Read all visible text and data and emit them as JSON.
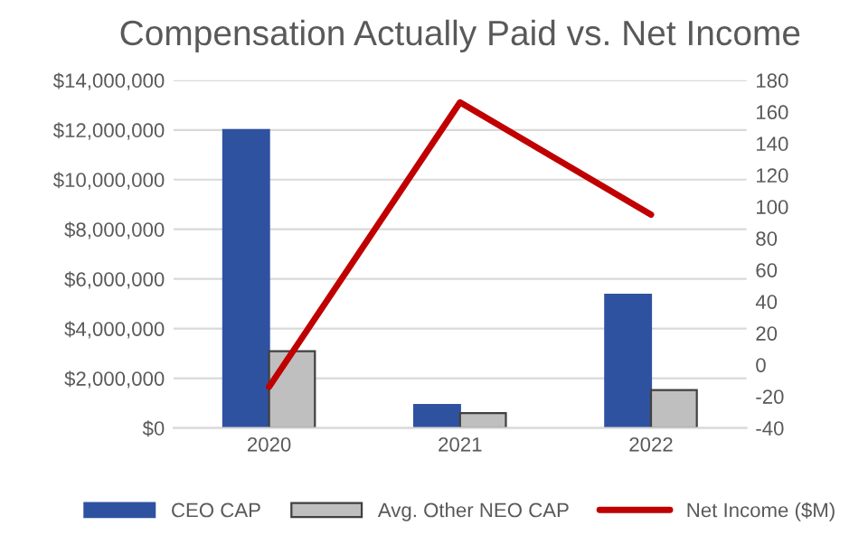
{
  "chart_data": {
    "type": "bar",
    "title": "Compensation Actually Paid vs. Net Income",
    "categories": [
      "2020",
      "2021",
      "2022"
    ],
    "series": [
      {
        "name": "CEO CAP",
        "color": "#2f52a0",
        "values": [
          12000000,
          930000,
          5370000
        ]
      },
      {
        "name": "Avg. Other NEO CAP",
        "color": "#bfbfbf",
        "values": [
          3090000,
          600000,
          1530000
        ]
      },
      {
        "name": "Net Income ($M)",
        "color": "#c00000",
        "type": "line",
        "axis": "y2",
        "values": [
          -14,
          166,
          95
        ]
      }
    ],
    "ylim": [
      0,
      14000000
    ],
    "yticks": [
      {
        "value": 0,
        "label": "$0"
      },
      {
        "value": 2000000,
        "label": "$2,000,000"
      },
      {
        "value": 4000000,
        "label": "$4,000,000"
      },
      {
        "value": 6000000,
        "label": "$6,000,000"
      },
      {
        "value": 8000000,
        "label": "$8,000,000"
      },
      {
        "value": 10000000,
        "label": "$10,000,000"
      },
      {
        "value": 12000000,
        "label": "$12,000,000"
      },
      {
        "value": 14000000,
        "label": "$14,000,000"
      }
    ],
    "y2lim": [
      -40,
      180
    ],
    "y2ticks": [
      -40,
      -20,
      0,
      20,
      40,
      60,
      80,
      100,
      120,
      140,
      160,
      180
    ],
    "grid": "y",
    "legend": "bottom"
  }
}
